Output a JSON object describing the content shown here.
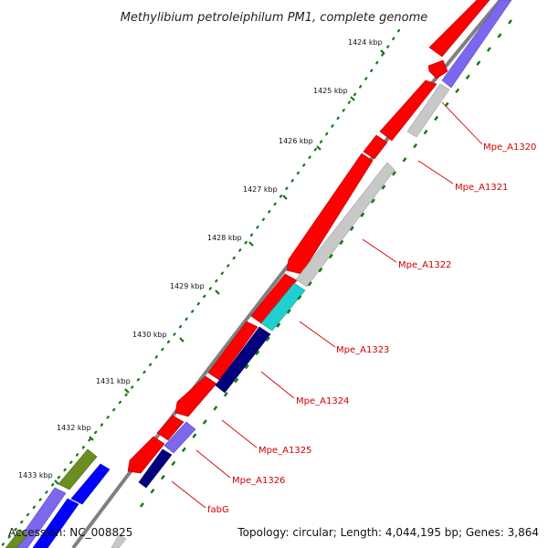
{
  "title": "Methylibium petroleiphilum PM1, complete genome",
  "accession": "Accession: NC_008825",
  "summary": "Topology: circular; Length: 4,044,195 bp; Genes: 3,864",
  "ticks": [
    "1424 kbp",
    "1425 kbp",
    "1426 kbp",
    "1427 kbp",
    "1428 kbp",
    "1429 kbp",
    "1430 kbp",
    "1431 kbp",
    "1432 kbp",
    "1433 kbp"
  ],
  "gene_labels": [
    "Mpe_A1320",
    "Mpe_A1321",
    "Mpe_A1322",
    "Mpe_A1323",
    "Mpe_A1324",
    "Mpe_A1325",
    "Mpe_A1326",
    "fabG"
  ],
  "colors": {
    "cds": "#ff0000",
    "rna": "#c8c8c8",
    "cog_blue": "#7b68ee",
    "cog_navy": "#00007f",
    "cog_cyan": "#20d0d0",
    "cog_green": "#6b8e23",
    "cog_bright_blue": "#0000ff",
    "backbone": "#808080",
    "tick_mark": "#117711",
    "label": "#d00000"
  }
}
